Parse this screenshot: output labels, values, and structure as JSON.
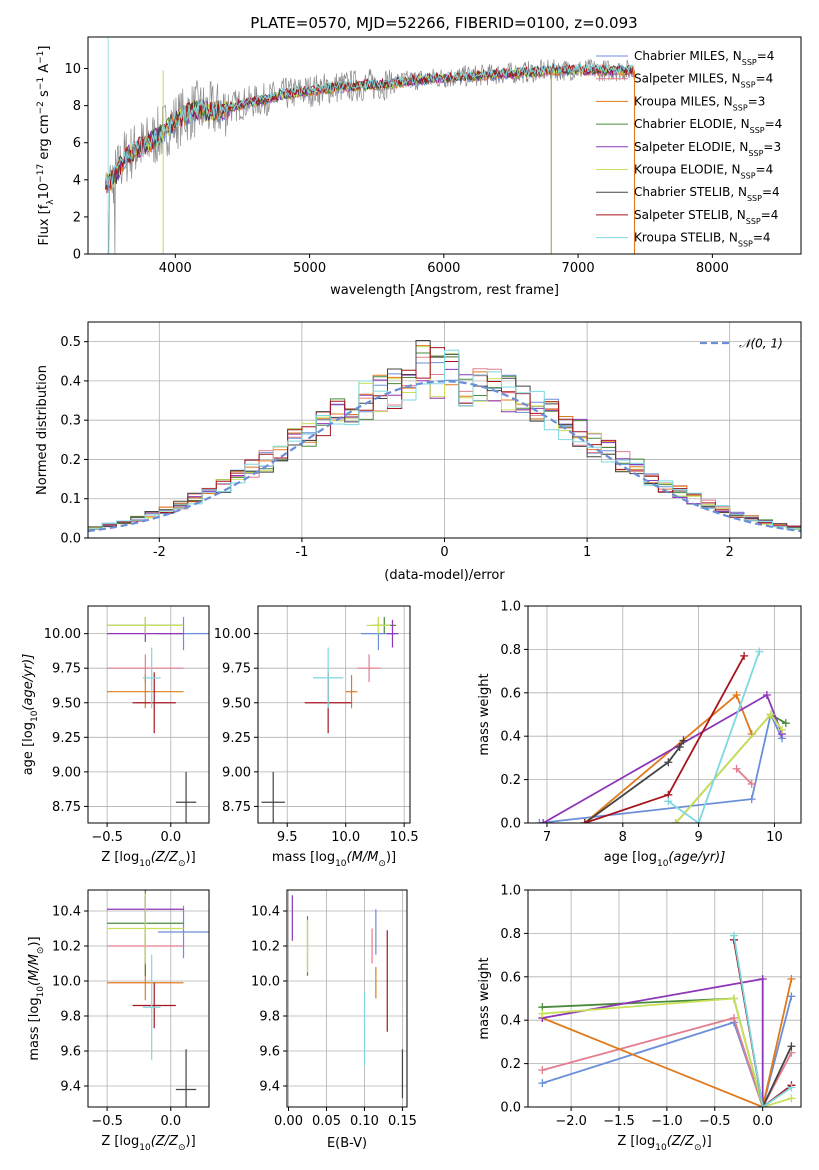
{
  "figure": {
    "title": "PLATE=0570, MJD=52266, FIBERID=0100, z=0.093"
  },
  "chart_data": [
    {
      "type": "line",
      "id": "spectrum",
      "xlabel": "wavelength [Angstrom, rest frame]",
      "ylabel": "Flux [f",
      "ylabel_sub": "λ",
      "ylabel_rest": "10",
      "ylabel_sup1": "−17",
      "ylabel_rest2": " erg cm",
      "ylabel_sup2": "−2",
      "ylabel_rest3": " s",
      "ylabel_sup3": "−1",
      "ylabel_rest4": " A",
      "ylabel_sup4": "−1",
      "ylabel_end": "]",
      "xlim": [
        3350,
        8660
      ],
      "ylim": [
        0,
        11.7
      ],
      "xticks": [
        4000,
        5000,
        6000,
        7000,
        8000
      ],
      "yticks": [
        0,
        2,
        4,
        6,
        8,
        10
      ],
      "grid": false,
      "legend": "right",
      "continuum_x": [
        3500,
        3560,
        3620,
        3700,
        3780,
        3860,
        3950,
        4050,
        4150,
        4250,
        4350,
        4500,
        4650,
        4800,
        5000,
        5200,
        5400,
        5600,
        5800,
        6000,
        6200,
        6400,
        6600,
        6800,
        7000,
        7200,
        7400
      ],
      "continuum_y": [
        3.9,
        4.3,
        5.2,
        5.6,
        5.9,
        6.3,
        6.9,
        7.4,
        7.8,
        7.7,
        7.8,
        8.1,
        8.3,
        8.6,
        8.8,
        9.0,
        9.1,
        9.2,
        9.4,
        9.5,
        9.6,
        9.7,
        9.8,
        9.9,
        9.95,
        9.9,
        9.9
      ],
      "series": [
        {
          "label": "Chabrier MILES, N",
          "sub": "SSP",
          "tail": "=4",
          "color": "#6a8fd8"
        },
        {
          "label": "Salpeter MILES, N",
          "sub": "SSP",
          "tail": "=4",
          "color": "#e37d8f"
        },
        {
          "label": "Kroupa MILES, N",
          "sub": "SSP",
          "tail": "=3",
          "color": "#e07b1c"
        },
        {
          "label": "Chabrier ELODIE, N",
          "sub": "SSP",
          "tail": "=4",
          "color": "#4a8a3c"
        },
        {
          "label": "Salpeter ELODIE, N",
          "sub": "SSP",
          "tail": "=3",
          "color": "#8e35b8"
        },
        {
          "label": "Kroupa ELODIE, N",
          "sub": "SSP",
          "tail": "=4",
          "color": "#c8e05a"
        },
        {
          "label": "Chabrier STELIB, N",
          "sub": "SSP",
          "tail": "=4",
          "color": "#444444"
        },
        {
          "label": "Salpeter STELIB, N",
          "sub": "SSP",
          "tail": "=4",
          "color": "#a8141e"
        },
        {
          "label": "Kroupa STELIB, N",
          "sub": "SSP",
          "tail": "=4",
          "color": "#7fd8e0"
        }
      ]
    },
    {
      "type": "line",
      "id": "residuals",
      "xlabel": "(data-model)/error",
      "ylabel": "Normed distribution",
      "xlim": [
        -2.5,
        2.5
      ],
      "ylim": [
        0,
        0.55
      ],
      "xticks": [
        -2,
        -1,
        0,
        1,
        2
      ],
      "yticks": [
        0.0,
        0.1,
        0.2,
        0.3,
        0.4,
        0.5
      ],
      "grid": true,
      "legend": "top-right",
      "legend_label": "𝒩(0, 1)",
      "gauss_color": "#6a8fd8",
      "bin_width": 0.1
    },
    {
      "type": "scatter",
      "id": "age_vs_Z",
      "xlabel": "Z [log",
      "xlabel_sub": "10",
      "xlabel_rest": "(Z/Z",
      "xlabel_sub2": "⊙",
      "xlabel_end": ")]",
      "ylabel": "age  [log",
      "ylabel_sub": "10",
      "ylabel_rest": "(age/yr)]",
      "xlim": [
        -0.65,
        0.3
      ],
      "ylim": [
        8.63,
        10.2
      ],
      "xticks": [
        -0.5,
        0.0
      ],
      "xticklabels": [
        "−0.5",
        "0.0"
      ],
      "yticks": [
        8.75,
        9.0,
        9.25,
        9.5,
        9.75,
        10.0
      ],
      "grid": true,
      "points": [
        {
          "color": "#6a8fd8",
          "x": 0.1,
          "y": 10.0,
          "xerr": 0.2,
          "yerr": 0.12
        },
        {
          "color": "#e37d8f",
          "x": -0.2,
          "y": 9.75,
          "xerr": 0.3,
          "yerr": 0.1
        },
        {
          "color": "#e07b1c",
          "x": -0.2,
          "y": 9.58,
          "xerr": 0.3,
          "yerr": 0.12
        },
        {
          "color": "#4a8a3c",
          "x": -0.2,
          "y": 10.06,
          "xerr": 0.3,
          "yerr": 0.06
        },
        {
          "color": "#8e35b8",
          "x": -0.2,
          "y": 10.0,
          "xerr": 0.3,
          "yerr": 0.06
        },
        {
          "color": "#c8e05a",
          "x": -0.2,
          "y": 10.06,
          "xerr": 0.3,
          "yerr": 0.06
        },
        {
          "color": "#444444",
          "x": 0.12,
          "y": 8.78,
          "xerr": 0.08,
          "yerr": 0.22
        },
        {
          "color": "#a8141e",
          "x": -0.13,
          "y": 9.5,
          "xerr": 0.17,
          "yerr": 0.22
        },
        {
          "color": "#7fd8e0",
          "x": -0.15,
          "y": 9.68,
          "xerr": 0.07,
          "yerr": 0.22
        }
      ]
    },
    {
      "type": "scatter",
      "id": "age_vs_mass",
      "xlabel": "mass [log",
      "xlabel_sub": "10",
      "xlabel_rest": "(M/M",
      "xlabel_sub2": "⊙",
      "xlabel_end": ")]",
      "xlim": [
        9.25,
        10.55
      ],
      "ylim": [
        8.63,
        10.2
      ],
      "xticks": [
        9.5,
        10.0,
        10.5
      ],
      "xticklabels": [
        "9.5",
        "10.0",
        "10.5"
      ],
      "yticks": [
        8.75,
        9.0,
        9.25,
        9.5,
        9.75,
        10.0
      ],
      "grid": true,
      "points": [
        {
          "color": "#6a8fd8",
          "x": 10.28,
          "y": 10.0,
          "xerr": 0.15,
          "yerr": 0.12
        },
        {
          "color": "#e37d8f",
          "x": 10.2,
          "y": 9.75,
          "xerr": 0.1,
          "yerr": 0.1
        },
        {
          "color": "#e07b1c",
          "x": 10.05,
          "y": 9.58,
          "xerr": 0.05,
          "yerr": 0.12
        },
        {
          "color": "#4a8a3c",
          "x": 10.33,
          "y": 10.06,
          "xerr": 0.1,
          "yerr": 0.06
        },
        {
          "color": "#8e35b8",
          "x": 10.4,
          "y": 10.0,
          "xerr": 0.05,
          "yerr": 0.1
        },
        {
          "color": "#c8e05a",
          "x": 10.28,
          "y": 10.06,
          "xerr": 0.1,
          "yerr": 0.06
        },
        {
          "color": "#444444",
          "x": 9.38,
          "y": 8.78,
          "xerr": 0.1,
          "yerr": 0.22
        },
        {
          "color": "#a8141e",
          "x": 9.85,
          "y": 9.5,
          "xerr": 0.2,
          "yerr": 0.22
        },
        {
          "color": "#7fd8e0",
          "x": 9.85,
          "y": 9.68,
          "xerr": 0.13,
          "yerr": 0.22
        }
      ]
    },
    {
      "type": "line",
      "id": "weight_vs_age",
      "xlabel": "age  [log",
      "xlabel_sub": "10",
      "xlabel_rest": "(age/yr)]",
      "ylabel": "mass weight",
      "xlim": [
        6.75,
        10.35
      ],
      "ylim": [
        0,
        1.0
      ],
      "xticks": [
        7,
        8,
        9,
        10
      ],
      "yticks": [
        0.0,
        0.2,
        0.4,
        0.6,
        0.8,
        1.0
      ],
      "grid": true,
      "series": [
        {
          "color": "#6a8fd8",
          "x": [
            6.9,
            9.7,
            9.95,
            10.1
          ],
          "y": [
            0.0,
            0.11,
            0.5,
            0.39
          ]
        },
        {
          "color": "#e37d8f",
          "x": [
            9.5,
            9.7
          ],
          "y": [
            0.25,
            0.18
          ]
        },
        {
          "color": "#e07b1c",
          "x": [
            7.5,
            9.5,
            9.7
          ],
          "y": [
            0.0,
            0.59,
            0.41
          ]
        },
        {
          "color": "#4a8a3c",
          "x": [
            8.7,
            9.95,
            10.15
          ],
          "y": [
            0.0,
            0.5,
            0.46
          ]
        },
        {
          "color": "#8e35b8",
          "x": [
            6.95,
            9.9,
            10.1
          ],
          "y": [
            0.0,
            0.59,
            0.41
          ]
        },
        {
          "color": "#c8e05a",
          "x": [
            8.7,
            9.95,
            10.1
          ],
          "y": [
            0.0,
            0.5,
            0.43
          ]
        },
        {
          "color": "#444444",
          "x": [
            7.5,
            8.6,
            8.75,
            8.8
          ],
          "y": [
            0.0,
            0.28,
            0.35,
            0.38
          ]
        },
        {
          "color": "#a8141e",
          "x": [
            7.5,
            8.6,
            9.6
          ],
          "y": [
            0.0,
            0.13,
            0.77
          ]
        },
        {
          "color": "#7fd8e0",
          "x": [
            8.6,
            9.0,
            9.8
          ],
          "y": [
            0.1,
            0.0,
            0.79
          ]
        }
      ]
    },
    {
      "type": "scatter",
      "id": "mass_vs_Z",
      "xlabel": "Z [log",
      "xlabel_sub": "10",
      "xlabel_rest": "(Z/Z",
      "xlabel_sub2": "⊙",
      "xlabel_end": ")]",
      "ylabel": "mass [log",
      "ylabel_sub": "10",
      "ylabel_rest": "(M/M",
      "ylabel_sub2": "⊙",
      "ylabel_end": ")]",
      "xlim": [
        -0.65,
        0.3
      ],
      "ylim": [
        9.28,
        10.52
      ],
      "xticks": [
        -0.5,
        0.0
      ],
      "xticklabels": [
        "−0.5",
        "0.0"
      ],
      "yticks": [
        9.4,
        9.6,
        9.8,
        10.0,
        10.2,
        10.4
      ],
      "grid": true,
      "points": [
        {
          "color": "#6a8fd8",
          "x": 0.1,
          "y": 10.28,
          "xerr": 0.2,
          "yerr": 0.15
        },
        {
          "color": "#e37d8f",
          "x": -0.2,
          "y": 10.2,
          "xerr": 0.3,
          "yerr": 0.1
        },
        {
          "color": "#e07b1c",
          "x": -0.2,
          "y": 9.99,
          "xerr": 0.3,
          "yerr": 0.1
        },
        {
          "color": "#4a8a3c",
          "x": -0.2,
          "y": 10.33,
          "xerr": 0.3,
          "yerr": 0.3
        },
        {
          "color": "#8e35b8",
          "x": -0.2,
          "y": 10.41,
          "xerr": 0.3,
          "yerr": 0.07
        },
        {
          "color": "#c8e05a",
          "x": -0.2,
          "y": 10.3,
          "xerr": 0.3,
          "yerr": 0.2
        },
        {
          "color": "#444444",
          "x": 0.12,
          "y": 9.38,
          "xerr": 0.08,
          "yerr": 0.23
        },
        {
          "color": "#a8141e",
          "x": -0.13,
          "y": 9.86,
          "xerr": 0.17,
          "yerr": 0.13
        },
        {
          "color": "#7fd8e0",
          "x": -0.15,
          "y": 9.85,
          "xerr": 0.07,
          "yerr": 0.3
        }
      ]
    },
    {
      "type": "scatter",
      "id": "mass_vs_EBV",
      "xlabel": "E(B-V)",
      "xlim": [
        -0.002,
        0.156
      ],
      "ylim": [
        9.28,
        10.52
      ],
      "xticks": [
        0.0,
        0.05,
        0.1,
        0.15
      ],
      "xticklabels": [
        "0.00",
        "0.05",
        "0.10",
        "0.15"
      ],
      "yticks": [
        9.4,
        9.6,
        9.8,
        10.0,
        10.2,
        10.4
      ],
      "grid": true,
      "points": [
        {
          "color": "#6a8fd8",
          "x": 0.115,
          "y": 10.28,
          "xerr": 0.0,
          "yerr": 0.13
        },
        {
          "color": "#e37d8f",
          "x": 0.11,
          "y": 10.2,
          "xerr": 0.0,
          "yerr": 0.1
        },
        {
          "color": "#e07b1c",
          "x": 0.115,
          "y": 9.99,
          "xerr": 0.0,
          "yerr": 0.09
        },
        {
          "color": "#4a8a3c",
          "x": 0.025,
          "y": 10.2,
          "xerr": 0.0,
          "yerr": 0.17
        },
        {
          "color": "#8e35b8",
          "x": 0.005,
          "y": 10.36,
          "xerr": 0.0,
          "yerr": 0.13
        },
        {
          "color": "#c8e05a",
          "x": 0.025,
          "y": 10.2,
          "xerr": 0.0,
          "yerr": 0.15
        },
        {
          "color": "#444444",
          "x": 0.15,
          "y": 9.47,
          "xerr": 0.0,
          "yerr": 0.14
        },
        {
          "color": "#a8141e",
          "x": 0.13,
          "y": 10.0,
          "xerr": 0.0,
          "yerr": 0.29
        },
        {
          "color": "#7fd8e0",
          "x": 0.1,
          "y": 9.73,
          "xerr": 0.0,
          "yerr": 0.21
        }
      ]
    },
    {
      "type": "line",
      "id": "weight_vs_Z",
      "xlabel": "Z [log",
      "xlabel_sub": "10",
      "xlabel_rest": "(Z/Z",
      "xlabel_sub2": "⊙",
      "xlabel_end": ")]",
      "ylabel": "mass weight",
      "xlim": [
        -2.45,
        0.4
      ],
      "ylim": [
        0,
        1.0
      ],
      "xticks": [
        -2.0,
        -1.5,
        -1.0,
        -0.5,
        0.0
      ],
      "xticklabels": [
        "−2.0",
        "−1.5",
        "−1.0",
        "−0.5",
        "0.0"
      ],
      "yticks": [
        0.0,
        0.2,
        0.4,
        0.6,
        0.8,
        1.0
      ],
      "grid": true,
      "series": [
        {
          "color": "#6a8fd8",
          "x": [
            -2.3,
            -0.3,
            0.0,
            0.3
          ],
          "y": [
            0.11,
            0.39,
            0.0,
            0.51
          ]
        },
        {
          "color": "#e37d8f",
          "x": [
            -2.3,
            -0.3,
            0.0,
            0.3
          ],
          "y": [
            0.17,
            0.41,
            0.0,
            0.25
          ]
        },
        {
          "color": "#e07b1c",
          "x": [
            -2.3,
            0.0,
            0.3
          ],
          "y": [
            0.41,
            0.0,
            0.59
          ]
        },
        {
          "color": "#4a8a3c",
          "x": [
            -2.3,
            -0.3,
            0.0
          ],
          "y": [
            0.46,
            0.5,
            0.0
          ]
        },
        {
          "color": "#8e35b8",
          "x": [
            -2.3,
            0.0,
            0.0
          ],
          "y": [
            0.41,
            0.59,
            0.0
          ]
        },
        {
          "color": "#c8e05a",
          "x": [
            -2.3,
            -0.3,
            0.0,
            0.3
          ],
          "y": [
            0.43,
            0.5,
            0.0,
            0.04
          ]
        },
        {
          "color": "#444444",
          "x": [
            -0.3,
            0.0,
            0.3
          ],
          "y": [
            0.77,
            0.0,
            0.28
          ]
        },
        {
          "color": "#a8141e",
          "x": [
            -0.3,
            0.0,
            0.3
          ],
          "y": [
            0.77,
            0.0,
            0.1
          ]
        },
        {
          "color": "#7fd8e0",
          "x": [
            -0.3,
            0.0,
            0.3
          ],
          "y": [
            0.79,
            0.0,
            0.09
          ]
        }
      ]
    }
  ]
}
